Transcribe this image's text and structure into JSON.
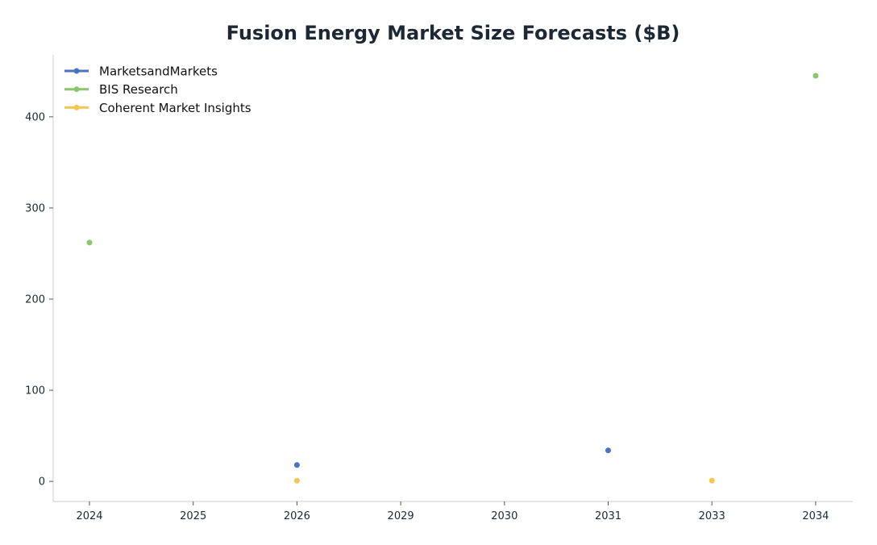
{
  "chart_data": {
    "type": "scatter",
    "title": "Fusion Energy Market Size Forecasts ($B)",
    "xlabel": "",
    "ylabel": "",
    "categories": [
      "2024",
      "2025",
      "2026",
      "2029",
      "2030",
      "2031",
      "2033",
      "2034"
    ],
    "y_ticks": [
      0,
      100,
      200,
      300,
      400
    ],
    "ylim": [
      -22,
      468
    ],
    "grid": false,
    "legend_position": "top-left",
    "series": [
      {
        "name": "MarketsandMarkets",
        "color": "#4c72c4",
        "points": [
          {
            "x": "2026",
            "y": 18
          },
          {
            "x": "2031",
            "y": 34
          }
        ]
      },
      {
        "name": "BIS Research",
        "color": "#8cc56e",
        "points": [
          {
            "x": "2024",
            "y": 262
          },
          {
            "x": "2034",
            "y": 445
          }
        ]
      },
      {
        "name": "Coherent Market Insights",
        "color": "#f7c651",
        "points": [
          {
            "x": "2026",
            "y": 0.8
          },
          {
            "x": "2033",
            "y": 0.9
          }
        ]
      }
    ]
  }
}
